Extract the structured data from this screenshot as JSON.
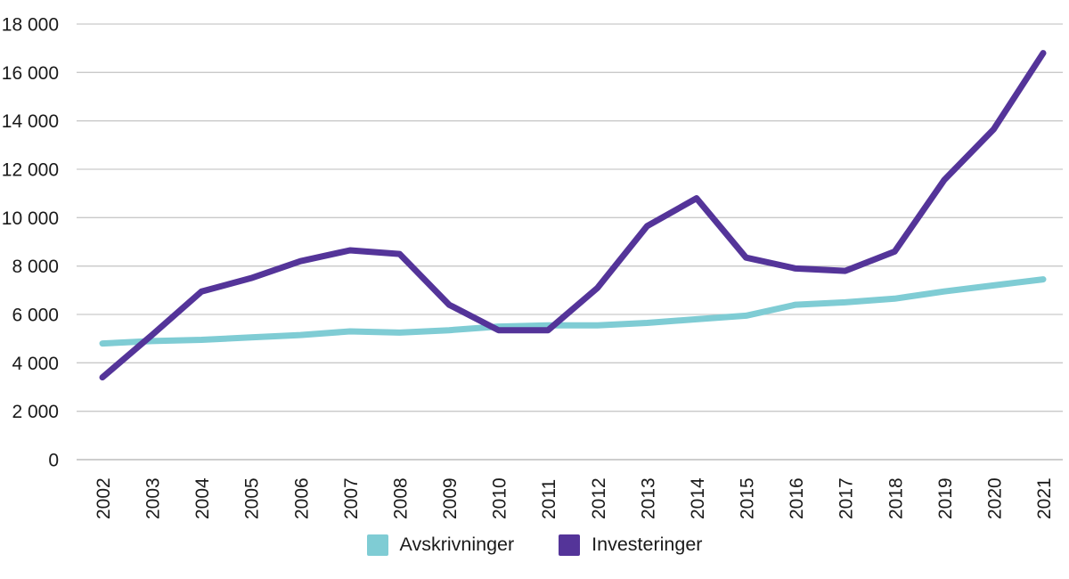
{
  "chart_data": {
    "type": "line",
    "title": "",
    "categories": [
      "2002",
      "2003",
      "2004",
      "2005",
      "2006",
      "2007",
      "2008",
      "2009",
      "2010",
      "2011",
      "2012",
      "2013",
      "2014",
      "2015",
      "2016",
      "2017",
      "2018",
      "2019",
      "2020",
      "2021"
    ],
    "series": [
      {
        "name": "Avskrivninger",
        "color": "#7fccd4",
        "values": [
          4800,
          4900,
          4950,
          5050,
          5150,
          5300,
          5250,
          5350,
          5500,
          5550,
          5550,
          5650,
          5800,
          5950,
          6400,
          6500,
          6650,
          6950,
          7200,
          7450
        ]
      },
      {
        "name": "Investeringer",
        "color": "#543499",
        "values": [
          3400,
          5150,
          6950,
          7500,
          8200,
          8650,
          8500,
          6400,
          5350,
          5350,
          7100,
          9650,
          10800,
          8350,
          7900,
          7800,
          8600,
          11550,
          13650,
          16800
        ]
      }
    ],
    "ylim": [
      0,
      18000
    ],
    "ytick_step": 2000,
    "ytick_labels": [
      "0",
      "2 000",
      "4 000",
      "6 000",
      "8 000",
      "10 000",
      "12 000",
      "14 000",
      "16 000",
      "18 000"
    ],
    "grid": true,
    "legend_position": "bottom",
    "gridline_color": "#c9c9c9",
    "axisline_color": "#bdbdbd",
    "text_color": "#1a1a1a"
  }
}
